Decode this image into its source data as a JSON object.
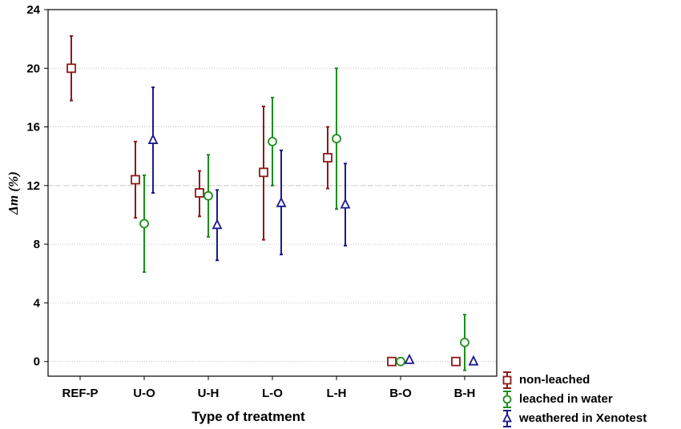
{
  "chart_data": {
    "type": "scatter",
    "title": "",
    "xlabel": "Type of treatment",
    "ylabel": "Δm (%)",
    "categories": [
      "REF-P",
      "U-O",
      "U-H",
      "L-O",
      "L-H",
      "B-O",
      "B-H"
    ],
    "ylim": [
      -1,
      24
    ],
    "yticks": [
      0,
      4,
      8,
      12,
      16,
      20,
      24
    ],
    "grid": true,
    "reference_line": 12,
    "legend_position": "bottom-right",
    "series": [
      {
        "name": "non-leached",
        "color": "#8b1a1a",
        "marker": "square",
        "values": [
          20.0,
          12.4,
          11.5,
          12.9,
          13.9,
          0.0,
          0.0
        ],
        "lower": [
          17.8,
          9.8,
          9.9,
          8.3,
          11.8,
          null,
          null
        ],
        "upper": [
          22.2,
          15.0,
          13.0,
          17.4,
          16.0,
          null,
          null
        ]
      },
      {
        "name": "leached in water",
        "color": "#1a8f1a",
        "marker": "circle",
        "values": [
          null,
          9.4,
          11.3,
          15.0,
          15.2,
          0.0,
          1.3
        ],
        "lower": [
          null,
          6.1,
          8.5,
          12.0,
          10.4,
          null,
          -0.6
        ],
        "upper": [
          null,
          12.7,
          14.1,
          18.0,
          20.0,
          null,
          3.2
        ]
      },
      {
        "name": "weathered in Xenotest",
        "color": "#1a1a8f",
        "marker": "triangle",
        "values": [
          null,
          15.1,
          9.3,
          10.8,
          10.7,
          0.1,
          0.0
        ],
        "lower": [
          null,
          11.5,
          6.9,
          7.3,
          7.9,
          null,
          null
        ],
        "upper": [
          null,
          18.7,
          11.7,
          14.4,
          13.5,
          null,
          null
        ]
      }
    ]
  }
}
